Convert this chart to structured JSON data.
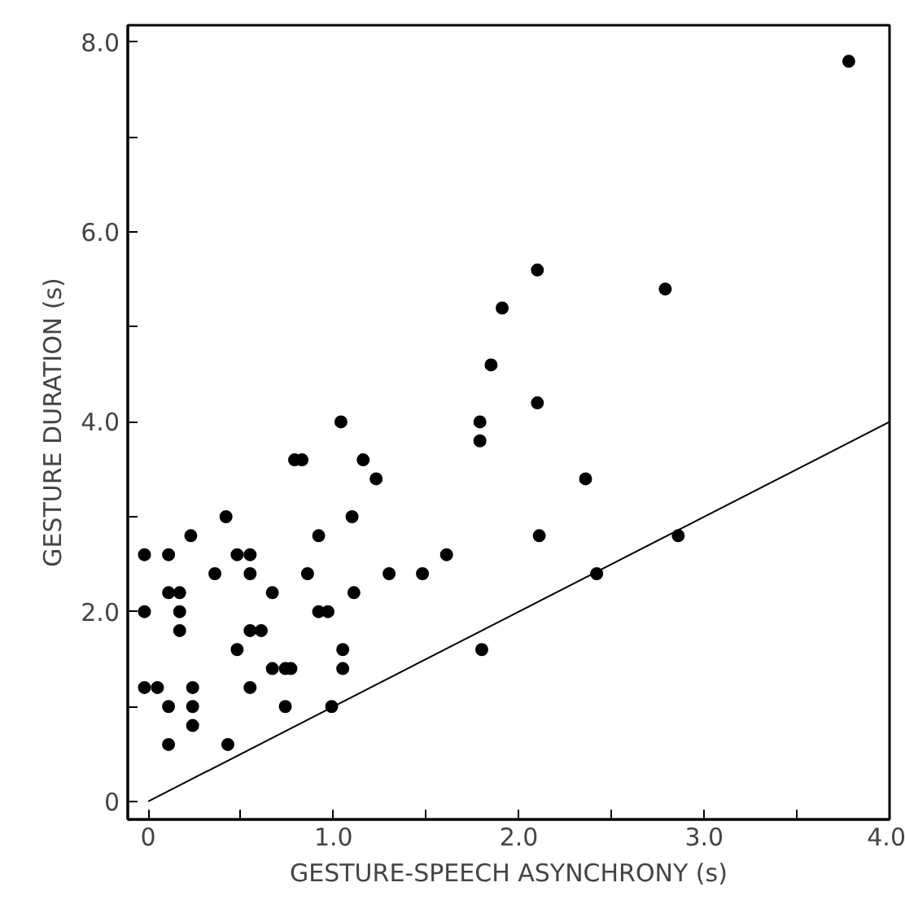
{
  "chart_data": {
    "type": "scatter",
    "xlabel": "GESTURE-SPEECH ASYNCHRONY (s)",
    "ylabel": "GESTURE DURATION (s)",
    "xlim": [
      -0.11,
      4.0
    ],
    "ylim": [
      -0.19,
      8.18
    ],
    "xticks": [
      0,
      {
        "value": 0.5,
        "label": null
      },
      {
        "value": 1,
        "label": "1.0"
      },
      {
        "value": 1.5,
        "label": null
      },
      {
        "value": 2,
        "label": "2.0"
      },
      {
        "value": 2.5,
        "label": null
      },
      {
        "value": 3,
        "label": "3.0"
      },
      {
        "value": 3.5,
        "label": null
      },
      {
        "value": 4,
        "label": "4.0"
      }
    ],
    "yticks": [
      0,
      {
        "value": 1,
        "label": null
      },
      {
        "value": 2,
        "label": "2.0"
      },
      {
        "value": 3,
        "label": null
      },
      {
        "value": 4,
        "label": "4.0"
      },
      {
        "value": 5,
        "label": null
      },
      {
        "value": 6,
        "label": "6.0"
      },
      {
        "value": 7,
        "label": null
      },
      {
        "value": 8,
        "label": "8.0"
      }
    ],
    "grid": false,
    "marker": "circle",
    "series": [
      {
        "color": "#000000",
        "x": [
          -0.02,
          0.11,
          0.23,
          0.42,
          0.36,
          0.48,
          0.55,
          0.55,
          0.11,
          0.17,
          -0.02,
          0.17,
          0.17,
          -0.02,
          0.05,
          0.11,
          0.11,
          0.24,
          0.24,
          0.24,
          0.43,
          0.48,
          0.55,
          0.61,
          0.55,
          0.67,
          0.67,
          0.74,
          0.77,
          0.74,
          0.79,
          0.83,
          0.86,
          0.92,
          0.92,
          0.97,
          0.99,
          1.05,
          1.05,
          1.1,
          1.11,
          1.16,
          1.23,
          1.3,
          1.48,
          1.61,
          1.79,
          1.8,
          2.11,
          2.36,
          2.42,
          2.86,
          1.04,
          1.79,
          2.1,
          1.85,
          1.91,
          2.1,
          2.79,
          3.78
        ],
        "values": [
          2.6,
          2.6,
          2.8,
          3.0,
          2.4,
          2.6,
          2.6,
          2.4,
          2.2,
          2.2,
          2.0,
          2.0,
          1.8,
          1.2,
          1.2,
          1.0,
          0.6,
          1.2,
          1.0,
          0.8,
          0.6,
          1.6,
          1.8,
          1.8,
          1.2,
          2.2,
          1.4,
          1.4,
          1.4,
          1.0,
          3.6,
          3.6,
          2.4,
          2.8,
          2.0,
          2.0,
          1.0,
          1.6,
          1.4,
          3.0,
          2.2,
          3.6,
          3.4,
          2.4,
          2.4,
          2.6,
          3.8,
          1.6,
          2.8,
          3.4,
          2.4,
          2.8,
          4.0,
          4.0,
          4.2,
          4.6,
          5.2,
          5.6,
          5.4,
          7.8
        ]
      },
      {
        "type": "line",
        "color": "#000000",
        "x": [
          0,
          4
        ],
        "values": [
          0,
          4
        ],
        "marker": "none"
      }
    ]
  }
}
